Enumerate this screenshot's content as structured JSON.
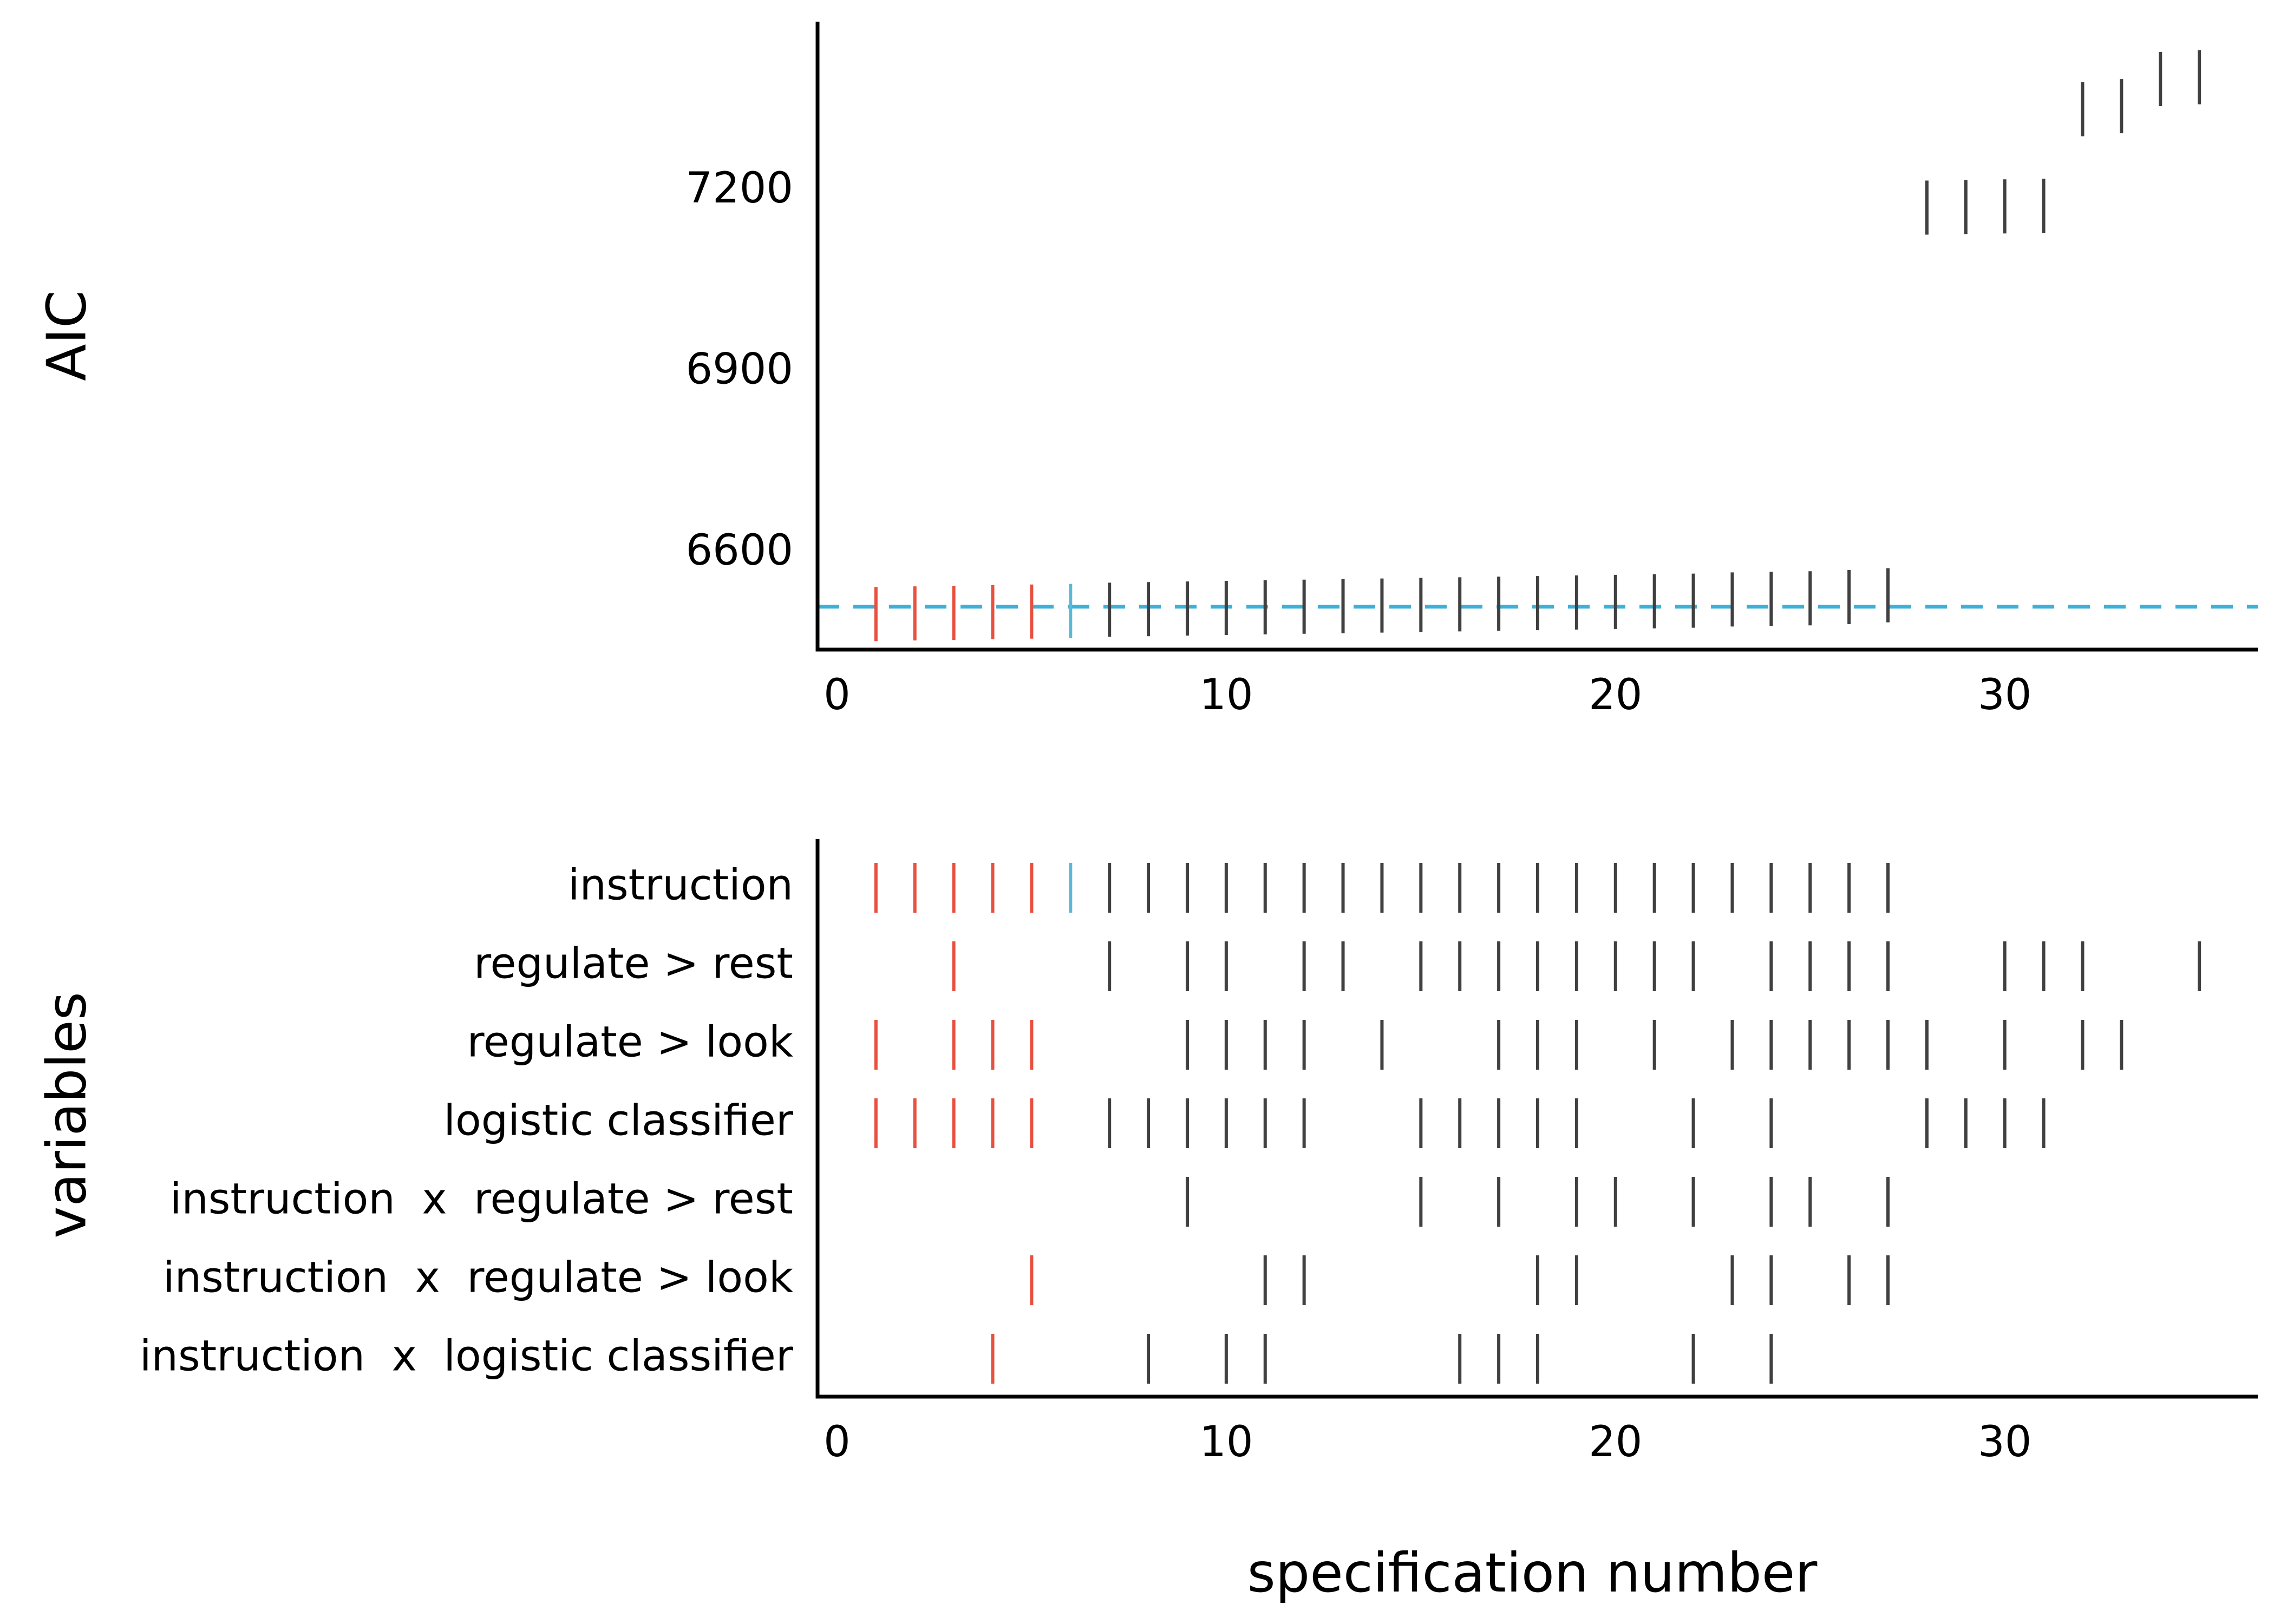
{
  "colors": {
    "highlight_red": "#e8503f",
    "highlight_blue": "#5ab9d6",
    "mark_default": "#404040",
    "reference_line": "#3db0d8"
  },
  "chart_data": [
    {
      "type": "scatter",
      "marker": "vertical-line",
      "title": "",
      "xlabel": "",
      "ylabel": "AIC",
      "xlim": [
        -0.5,
        36.5
      ],
      "ylim": [
        6440,
        7480
      ],
      "xticks": [
        "0",
        "10",
        "20",
        "30"
      ],
      "yticks": [
        "6600",
        "6900",
        "7200"
      ],
      "grid": false,
      "reference_line": {
        "y": 6511,
        "style": "dashed",
        "color": "#3db0d8"
      },
      "x": [
        1,
        2,
        3,
        4,
        5,
        6,
        7,
        8,
        9,
        10,
        11,
        12,
        13,
        14,
        15,
        16,
        17,
        18,
        19,
        20,
        21,
        22,
        23,
        24,
        25,
        26,
        27,
        28,
        29,
        30,
        31,
        32,
        33,
        34,
        35
      ],
      "y": [
        6499,
        6500,
        6501,
        6502,
        6503,
        6504,
        6506,
        6507,
        6508,
        6509,
        6510,
        6511,
        6512,
        6513,
        6514,
        6515,
        6516,
        6517,
        6518,
        6519,
        6520,
        6521,
        6523,
        6524,
        6525,
        6527,
        6530,
        7172,
        7173,
        7174,
        7175,
        7335,
        7340,
        7385,
        7388
      ],
      "point_colors": [
        "red",
        "red",
        "red",
        "red",
        "red",
        "blue",
        "default",
        "default",
        "default",
        "default",
        "default",
        "default",
        "default",
        "default",
        "default",
        "default",
        "default",
        "default",
        "default",
        "default",
        "default",
        "default",
        "default",
        "default",
        "default",
        "default",
        "default",
        "default",
        "default",
        "default",
        "default",
        "default",
        "default",
        "default",
        "default"
      ]
    },
    {
      "type": "scatter",
      "marker": "vertical-line",
      "title": "",
      "xlabel": "specification number",
      "ylabel": "variables",
      "xlim": [
        -0.5,
        36.5
      ],
      "xticks": [
        "0",
        "10",
        "20",
        "30"
      ],
      "grid": false,
      "categories": [
        "instruction",
        "regulate > rest",
        "regulate > look",
        "logistic classifier",
        "instruction  x  regulate > rest",
        "instruction  x  regulate > look",
        "instruction  x  logistic classifier"
      ],
      "rows": [
        [
          1,
          2,
          3,
          4,
          5,
          6,
          7,
          8,
          9,
          10,
          11,
          12,
          13,
          14,
          15,
          16,
          17,
          18,
          19,
          20,
          21,
          22,
          23,
          24,
          25,
          26,
          27
        ],
        [
          3,
          7,
          9,
          10,
          12,
          13,
          15,
          16,
          17,
          18,
          19,
          20,
          21,
          22,
          24,
          25,
          26,
          27,
          30,
          31,
          32,
          35
        ],
        [
          1,
          3,
          4,
          5,
          9,
          10,
          11,
          12,
          14,
          17,
          18,
          19,
          21,
          23,
          24,
          25,
          26,
          27,
          28,
          30,
          32,
          33
        ],
        [
          1,
          2,
          3,
          4,
          5,
          7,
          8,
          9,
          10,
          11,
          12,
          15,
          16,
          17,
          18,
          19,
          22,
          24,
          28,
          29,
          30,
          31
        ],
        [
          9,
          15,
          17,
          19,
          20,
          22,
          24,
          25,
          27
        ],
        [
          5,
          11,
          12,
          18,
          19,
          23,
          24,
          26,
          27
        ],
        [
          4,
          8,
          10,
          11,
          16,
          17,
          18,
          22,
          24
        ]
      ],
      "red_specs": [
        1,
        2,
        3,
        4,
        5
      ],
      "blue_specs": [
        6
      ]
    }
  ]
}
